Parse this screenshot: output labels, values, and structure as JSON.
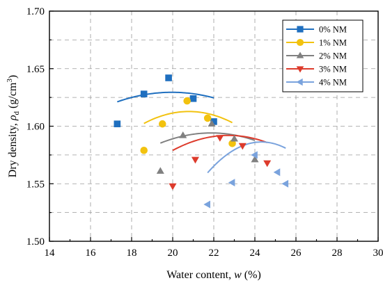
{
  "chart_data": {
    "type": "line",
    "xlabel": "Water content, w (%)",
    "ylabel": "Dry density, ρd (g/cm3)",
    "xlim": [
      14,
      30
    ],
    "ylim": [
      1.5,
      1.7
    ],
    "xticks": [
      "14",
      "16",
      "18",
      "20",
      "22",
      "24",
      "26",
      "28",
      "30"
    ],
    "yticks": [
      "1.50",
      "1.55",
      "1.60",
      "1.65",
      "1.70"
    ],
    "grid": true,
    "legend_position": "top-right",
    "series": [
      {
        "name": "0% NM",
        "color": "#1f6fbf",
        "marker": "square",
        "x": [
          17.3,
          18.6,
          19.8,
          21.0,
          22.0
        ],
        "y": [
          1.602,
          1.628,
          1.642,
          1.624,
          1.604
        ],
        "fit": [
          1.1645,
          0.04658,
          -0.0011666
        ]
      },
      {
        "name": "1% NM",
        "color": "#f2c20f",
        "marker": "circle",
        "x": [
          18.6,
          19.5,
          20.7,
          21.7,
          22.9
        ],
        "y": [
          1.579,
          1.602,
          1.622,
          1.607,
          1.585
        ],
        "fit": [
          0.6755,
          0.09017,
          -0.0021687
        ]
      },
      {
        "name": "2% NM",
        "color": "#808080",
        "marker": "triangle-up",
        "x": [
          19.4,
          20.5,
          21.9,
          23.0,
          24.0
        ],
        "y": [
          1.561,
          1.592,
          1.602,
          1.589,
          1.571
        ],
        "fit": [
          0.9035,
          0.06314,
          -0.0014431
        ]
      },
      {
        "name": "3% NM",
        "color": "#dd3b2c",
        "marker": "triangle-down",
        "x": [
          20.0,
          21.1,
          22.3,
          23.4,
          24.6
        ],
        "y": [
          1.548,
          1.571,
          1.59,
          1.583,
          1.568
        ],
        "fit": [
          0.6802,
          0.08027,
          -0.0017666
        ]
      },
      {
        "name": "4% NM",
        "color": "#7aa3dd",
        "marker": "triangle-left",
        "x": [
          21.7,
          22.9,
          24.0,
          25.1,
          25.5
        ],
        "y": [
          1.532,
          1.551,
          1.575,
          1.56,
          1.55
        ],
        "fit": [
          -0.7205,
          0.1897,
          -0.0039
        ]
      }
    ]
  }
}
